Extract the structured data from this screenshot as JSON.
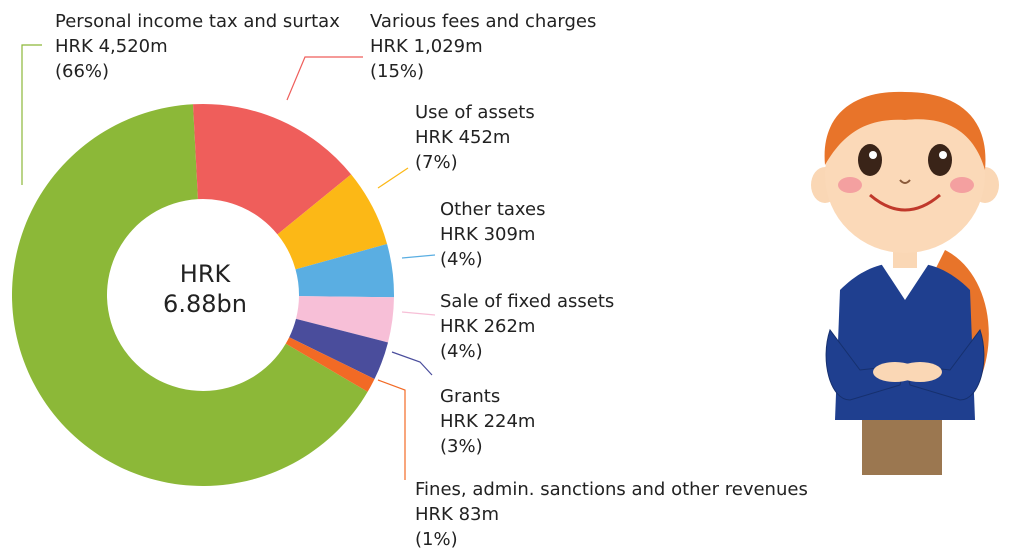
{
  "chart_data": {
    "type": "donut",
    "categories": [
      "Personal income tax and surtax",
      "Various fees and charges",
      "Use of assets",
      "Other taxes",
      "Sale of fixed assets",
      "Grants",
      "Fines, admin. sanctions and other revenues"
    ],
    "values": [
      4520,
      1029,
      452,
      309,
      262,
      224,
      83
    ],
    "value_labels": [
      "HRK 4,520m",
      "HRK 1,029m",
      "HRK 452m",
      "HRK 309m",
      "HRK 262m",
      "HRK 224m",
      "HRK 83m"
    ],
    "percents": [
      66,
      15,
      7,
      4,
      4,
      3,
      1
    ],
    "percent_labels": [
      "(66%)",
      "(15%)",
      "(7%)",
      "(4%)",
      "(4%)",
      "(3%)",
      "(1%)"
    ],
    "colors": [
      "#8cb838",
      "#ef5e5b",
      "#fcb816",
      "#5aaee2",
      "#f7bfd7",
      "#4a4d9c",
      "#f26a25"
    ],
    "center_label": [
      "HRK",
      "6.88bn"
    ]
  }
}
